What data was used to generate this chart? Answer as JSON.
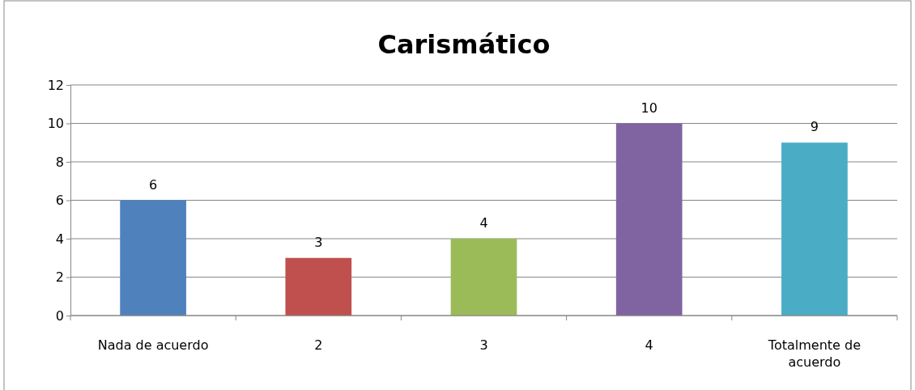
{
  "chart_data": {
    "type": "bar",
    "title": "Carismático",
    "categories": [
      "Nada de acuerdo",
      "2",
      "3",
      "4",
      "Totalmente de acuerdo"
    ],
    "values": [
      6,
      3,
      4,
      10,
      9
    ],
    "colors": [
      "#4f81bd",
      "#c0504d",
      "#9bbb59",
      "#8064a2",
      "#4bacc6"
    ],
    "ylim": [
      0,
      12
    ],
    "yticks": [
      0,
      2,
      4,
      6,
      8,
      10,
      12
    ],
    "grid": "y",
    "data_labels": true
  }
}
